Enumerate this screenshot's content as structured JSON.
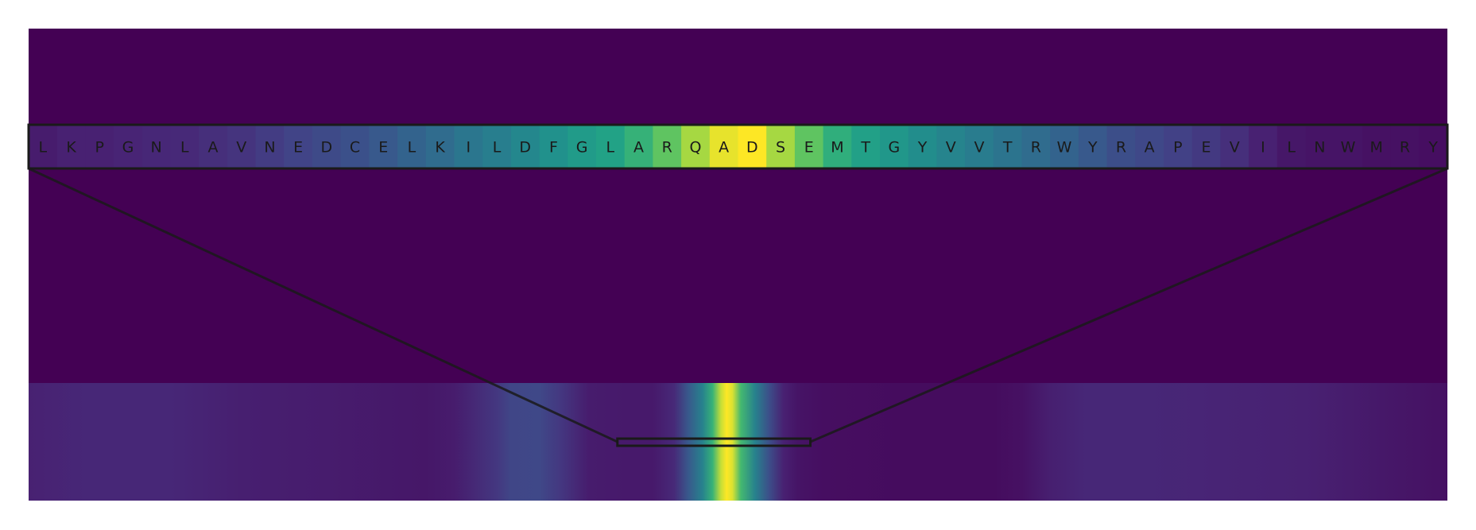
{
  "chart_data": {
    "type": "heatmap",
    "title": "",
    "xlabel": "",
    "ylabel": "",
    "colormap": "viridis",
    "value_range": [
      0,
      1
    ],
    "background_value": 0.0,
    "zoom": {
      "residues": [
        "L",
        "K",
        "P",
        "G",
        "N",
        "L",
        "A",
        "V",
        "N",
        "E",
        "D",
        "C",
        "E",
        "L",
        "K",
        "I",
        "L",
        "D",
        "F",
        "G",
        "L",
        "A",
        "R",
        "Q",
        "A",
        "D",
        "S",
        "E",
        "M",
        "T",
        "G",
        "Y",
        "V",
        "V",
        "T",
        "R",
        "W",
        "Y",
        "R",
        "A",
        "P",
        "E",
        "V",
        "I",
        "L",
        "N",
        "W",
        "M",
        "R",
        "Y"
      ],
      "values": [
        0.1,
        0.12,
        0.12,
        0.13,
        0.14,
        0.15,
        0.17,
        0.19,
        0.22,
        0.25,
        0.28,
        0.31,
        0.35,
        0.4,
        0.44,
        0.49,
        0.53,
        0.58,
        0.63,
        0.68,
        0.72,
        0.78,
        0.84,
        0.92,
        0.98,
        1.0,
        0.92,
        0.84,
        0.77,
        0.71,
        0.66,
        0.61,
        0.56,
        0.52,
        0.48,
        0.44,
        0.4,
        0.35,
        0.3,
        0.27,
        0.24,
        0.21,
        0.17,
        0.12,
        0.08,
        0.07,
        0.07,
        0.06,
        0.06,
        0.05
      ]
    },
    "full_sequence": {
      "length": 1000,
      "highlight_window": [
        415,
        551
      ],
      "profile": [
        [
          0,
          0.12
        ],
        [
          40,
          0.14
        ],
        [
          100,
          0.14
        ],
        [
          150,
          0.11
        ],
        [
          210,
          0.1
        ],
        [
          280,
          0.08
        ],
        [
          300,
          0.1
        ],
        [
          330,
          0.2
        ],
        [
          340,
          0.26
        ],
        [
          360,
          0.27
        ],
        [
          375,
          0.2
        ],
        [
          395,
          0.1
        ],
        [
          420,
          0.09
        ],
        [
          440,
          0.09
        ],
        [
          455,
          0.15
        ],
        [
          465,
          0.35
        ],
        [
          475,
          0.55
        ],
        [
          482,
          0.78
        ],
        [
          488,
          0.95
        ],
        [
          492,
          1.0
        ],
        [
          496,
          0.97
        ],
        [
          502,
          0.8
        ],
        [
          512,
          0.55
        ],
        [
          522,
          0.3
        ],
        [
          532,
          0.12
        ],
        [
          542,
          0.07
        ],
        [
          560,
          0.05
        ],
        [
          620,
          0.04
        ],
        [
          680,
          0.04
        ],
        [
          700,
          0.06
        ],
        [
          720,
          0.11
        ],
        [
          745,
          0.14
        ],
        [
          790,
          0.14
        ],
        [
          840,
          0.13
        ],
        [
          900,
          0.12
        ],
        [
          960,
          0.08
        ],
        [
          1000,
          0.06
        ]
      ]
    }
  }
}
